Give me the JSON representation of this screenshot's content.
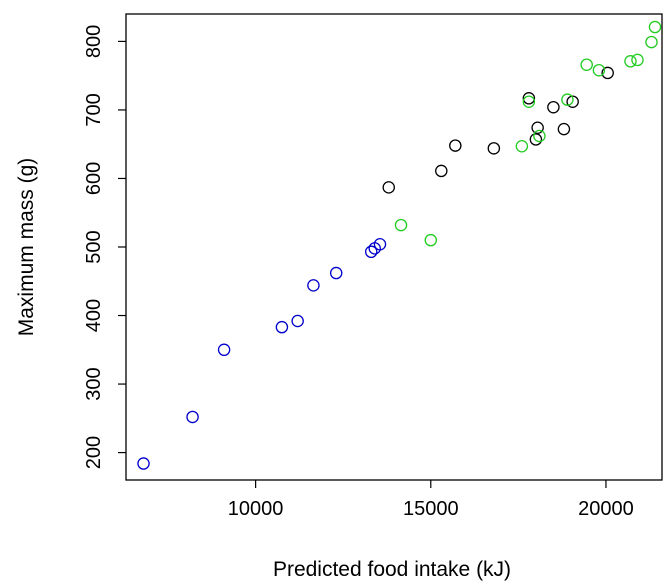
{
  "chart_data": {
    "type": "scatter",
    "xlabel": "Predicted food intake (kJ)",
    "ylabel": "Maximum mass (g)",
    "xlim": [
      6300,
      21600
    ],
    "ylim": [
      160,
      840
    ],
    "xticks": [
      10000,
      15000,
      20000
    ],
    "yticks": [
      200,
      300,
      400,
      500,
      600,
      700,
      800
    ],
    "xtick_labels": [
      "10000",
      "15000",
      "20000"
    ],
    "ytick_labels": [
      "200",
      "300",
      "400",
      "500",
      "600",
      "700",
      "800"
    ],
    "grid": false,
    "marker": "open-circle",
    "series": [
      {
        "color": "#0000cc",
        "points": [
          [
            6800,
            184
          ],
          [
            8200,
            252
          ],
          [
            9100,
            350
          ],
          [
            10750,
            383
          ],
          [
            11200,
            392
          ],
          [
            11650,
            444
          ],
          [
            12300,
            462
          ],
          [
            13300,
            493
          ],
          [
            13400,
            498
          ],
          [
            13550,
            504
          ]
        ]
      },
      {
        "color": "#000000",
        "points": [
          [
            13800,
            587
          ],
          [
            15300,
            611
          ],
          [
            15700,
            648
          ],
          [
            16800,
            644
          ],
          [
            17800,
            717
          ],
          [
            18000,
            657
          ],
          [
            18050,
            674
          ],
          [
            18500,
            704
          ],
          [
            18800,
            672
          ],
          [
            19050,
            712
          ],
          [
            20050,
            754
          ]
        ]
      },
      {
        "color": "#22cc22",
        "points": [
          [
            14150,
            532
          ],
          [
            15000,
            510
          ],
          [
            17600,
            647
          ],
          [
            17800,
            712
          ],
          [
            18100,
            662
          ],
          [
            18900,
            715
          ],
          [
            19450,
            766
          ],
          [
            19800,
            758
          ],
          [
            20700,
            771
          ],
          [
            20900,
            773
          ],
          [
            21300,
            799
          ],
          [
            21400,
            821
          ]
        ]
      }
    ]
  }
}
